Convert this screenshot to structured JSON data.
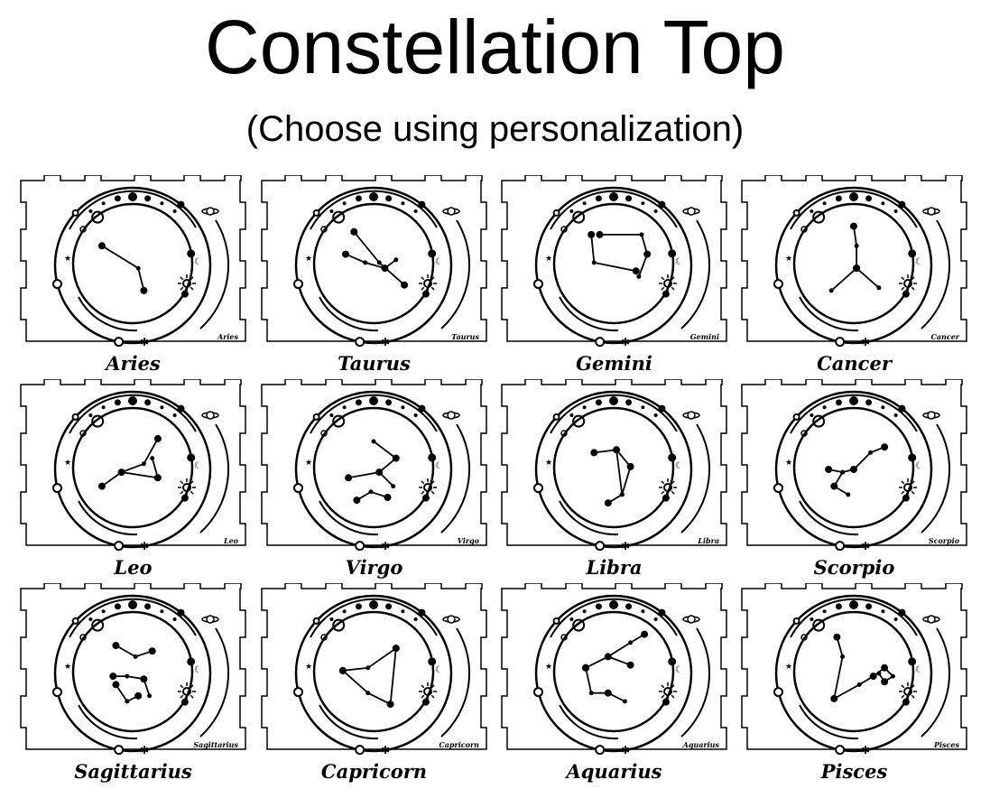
{
  "title": "Constellation Top",
  "subtitle": "(Choose using personalization)",
  "colors": {
    "ink": "#000000",
    "background": "#ffffff"
  },
  "signs": [
    {
      "name": "Aries"
    },
    {
      "name": "Taurus"
    },
    {
      "name": "Gemini"
    },
    {
      "name": "Cancer"
    },
    {
      "name": "Leo"
    },
    {
      "name": "Virgo"
    },
    {
      "name": "Libra"
    },
    {
      "name": "Scorpio"
    },
    {
      "name": "Sagittarius"
    },
    {
      "name": "Capricorn"
    },
    {
      "name": "Aquarius"
    },
    {
      "name": "Pisces"
    }
  ]
}
